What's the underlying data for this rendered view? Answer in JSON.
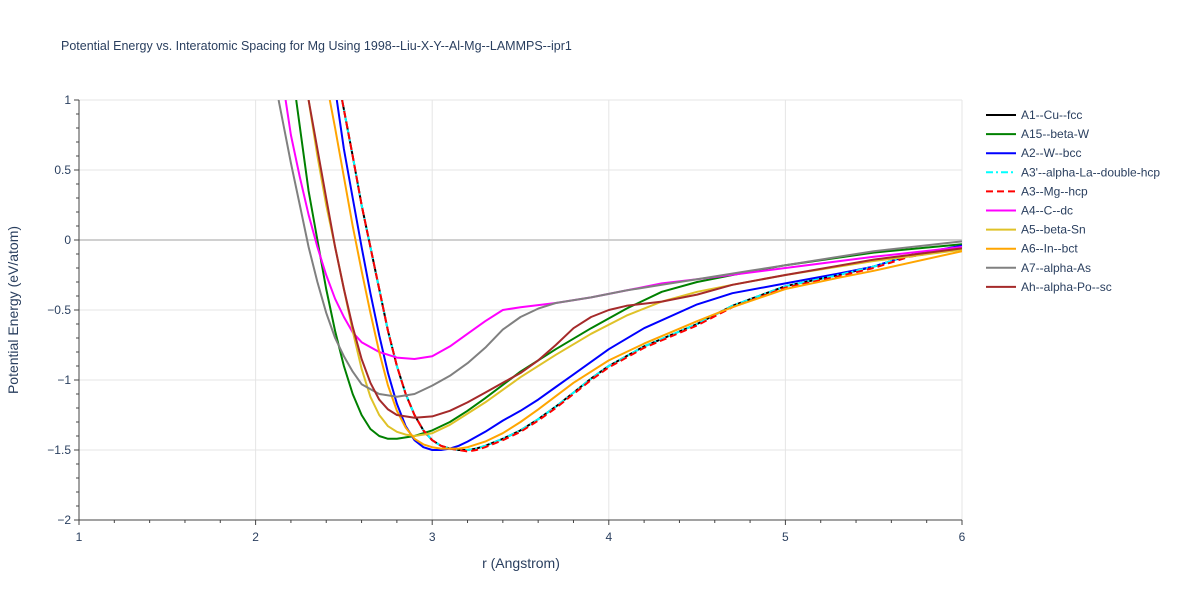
{
  "chart_data": {
    "type": "line",
    "title": "Potential Energy vs. Interatomic Spacing for Mg Using 1998--Liu-X-Y--Al-Mg--LAMMPS--ipr1",
    "xlabel": "r (Angstrom)",
    "ylabel": "Potential Energy (eV/atom)",
    "xlim": [
      1,
      6
    ],
    "ylim": [
      -2,
      1
    ],
    "xticks": [
      1,
      2,
      3,
      4,
      5,
      6
    ],
    "yticks": [
      1,
      0.5,
      0,
      -0.5,
      -1,
      -1.5,
      -2
    ],
    "ytick_labels": [
      "1",
      "0.5",
      "0",
      "−0.5",
      "−1",
      "−1.5",
      "−2"
    ],
    "grid": true,
    "legend_position": "right",
    "series": [
      {
        "name": "A1--Cu--fcc",
        "color": "#000000",
        "dash": "solid",
        "x": [
          2.49,
          2.55,
          2.6,
          2.65,
          2.7,
          2.75,
          2.8,
          2.85,
          2.9,
          2.95,
          3.0,
          3.05,
          3.1,
          3.15,
          3.2,
          3.25,
          3.3,
          3.4,
          3.5,
          3.6,
          3.7,
          3.8,
          3.9,
          4.0,
          4.2,
          4.5,
          4.7,
          5.0,
          5.3,
          5.5,
          5.7,
          6.0
        ],
        "y": [
          1.0,
          0.6,
          0.25,
          -0.05,
          -0.35,
          -0.65,
          -0.9,
          -1.1,
          -1.25,
          -1.36,
          -1.43,
          -1.47,
          -1.49,
          -1.5,
          -1.5,
          -1.49,
          -1.47,
          -1.42,
          -1.36,
          -1.28,
          -1.19,
          -1.09,
          -0.99,
          -0.9,
          -0.76,
          -0.6,
          -0.47,
          -0.33,
          -0.25,
          -0.19,
          -0.11,
          -0.05
        ]
      },
      {
        "name": "A15--beta-W",
        "color": "#008000",
        "dash": "solid",
        "x": [
          2.23,
          2.3,
          2.35,
          2.4,
          2.45,
          2.5,
          2.55,
          2.6,
          2.65,
          2.7,
          2.75,
          2.8,
          2.9,
          3.0,
          3.1,
          3.2,
          3.3,
          3.5,
          3.7,
          3.9,
          4.1,
          4.3,
          4.5,
          4.7,
          5.0,
          5.5,
          6.0
        ],
        "y": [
          1.0,
          0.35,
          0.0,
          -0.35,
          -0.65,
          -0.9,
          -1.1,
          -1.25,
          -1.35,
          -1.4,
          -1.42,
          -1.42,
          -1.4,
          -1.36,
          -1.3,
          -1.22,
          -1.13,
          -0.94,
          -0.78,
          -0.63,
          -0.49,
          -0.37,
          -0.3,
          -0.25,
          -0.18,
          -0.09,
          -0.03
        ]
      },
      {
        "name": "A2--W--bcc",
        "color": "#0000ff",
        "dash": "solid",
        "x": [
          2.46,
          2.5,
          2.55,
          2.6,
          2.65,
          2.7,
          2.75,
          2.8,
          2.85,
          2.9,
          2.95,
          3.0,
          3.05,
          3.1,
          3.15,
          3.2,
          3.3,
          3.4,
          3.5,
          3.6,
          3.7,
          3.8,
          4.0,
          4.2,
          4.5,
          4.7,
          5.0,
          5.3,
          5.5,
          5.7,
          6.0
        ],
        "y": [
          1.0,
          0.65,
          0.3,
          -0.05,
          -0.38,
          -0.68,
          -0.95,
          -1.17,
          -1.33,
          -1.43,
          -1.48,
          -1.5,
          -1.5,
          -1.49,
          -1.47,
          -1.44,
          -1.37,
          -1.29,
          -1.22,
          -1.14,
          -1.05,
          -0.96,
          -0.78,
          -0.63,
          -0.46,
          -0.38,
          -0.31,
          -0.24,
          -0.19,
          -0.11,
          -0.04
        ]
      },
      {
        "name": "A3'--alpha-La--double-hcp",
        "color": "#00ffff",
        "dash": "dashdot",
        "x": [
          2.49,
          2.55,
          2.6,
          2.65,
          2.7,
          2.75,
          2.8,
          2.85,
          2.9,
          2.95,
          3.0,
          3.05,
          3.1,
          3.15,
          3.2,
          3.25,
          3.3,
          3.4,
          3.5,
          3.6,
          3.7,
          3.8,
          3.9,
          4.0,
          4.2,
          4.5,
          4.7,
          5.0,
          5.3,
          5.5,
          5.7,
          6.0
        ],
        "y": [
          1.0,
          0.6,
          0.25,
          -0.05,
          -0.35,
          -0.65,
          -0.9,
          -1.1,
          -1.25,
          -1.36,
          -1.43,
          -1.47,
          -1.49,
          -1.5,
          -1.5,
          -1.49,
          -1.47,
          -1.42,
          -1.36,
          -1.28,
          -1.19,
          -1.09,
          -0.99,
          -0.9,
          -0.76,
          -0.6,
          -0.47,
          -0.33,
          -0.25,
          -0.19,
          -0.11,
          -0.05
        ]
      },
      {
        "name": "A3--Mg--hcp",
        "color": "#ff0000",
        "dash": "dash",
        "x": [
          2.49,
          2.55,
          2.6,
          2.65,
          2.7,
          2.75,
          2.8,
          2.85,
          2.9,
          2.95,
          3.0,
          3.05,
          3.1,
          3.15,
          3.2,
          3.25,
          3.3,
          3.4,
          3.5,
          3.6,
          3.7,
          3.8,
          3.9,
          4.0,
          4.2,
          4.5,
          4.7,
          5.0,
          5.3,
          5.5,
          5.7,
          6.0
        ],
        "y": [
          1.0,
          0.6,
          0.25,
          -0.05,
          -0.35,
          -0.65,
          -0.9,
          -1.1,
          -1.25,
          -1.36,
          -1.43,
          -1.47,
          -1.49,
          -1.5,
          -1.51,
          -1.5,
          -1.48,
          -1.43,
          -1.37,
          -1.29,
          -1.2,
          -1.1,
          -1.0,
          -0.91,
          -0.77,
          -0.61,
          -0.48,
          -0.34,
          -0.26,
          -0.2,
          -0.12,
          -0.06
        ]
      },
      {
        "name": "A4--C--dc",
        "color": "#ff00ff",
        "dash": "solid",
        "x": [
          2.17,
          2.2,
          2.25,
          2.3,
          2.35,
          2.4,
          2.45,
          2.5,
          2.55,
          2.6,
          2.7,
          2.8,
          2.9,
          3.0,
          3.1,
          3.2,
          3.3,
          3.4,
          3.5,
          3.7,
          3.9,
          4.1,
          4.3,
          4.5,
          5.0,
          5.5,
          6.0
        ],
        "y": [
          1.0,
          0.75,
          0.45,
          0.18,
          -0.05,
          -0.25,
          -0.42,
          -0.55,
          -0.66,
          -0.73,
          -0.8,
          -0.84,
          -0.85,
          -0.83,
          -0.76,
          -0.67,
          -0.58,
          -0.5,
          -0.48,
          -0.45,
          -0.41,
          -0.36,
          -0.31,
          -0.28,
          -0.2,
          -0.12,
          -0.05
        ]
      },
      {
        "name": "A5--beta-Sn",
        "color": "#dfc228",
        "dash": "solid",
        "x": [
          2.3,
          2.35,
          2.4,
          2.45,
          2.5,
          2.55,
          2.6,
          2.65,
          2.7,
          2.75,
          2.8,
          2.85,
          2.9,
          3.0,
          3.1,
          3.2,
          3.3,
          3.5,
          3.7,
          3.9,
          4.1,
          4.3,
          4.5,
          4.7,
          5.0,
          5.5,
          6.0
        ],
        "y": [
          1.0,
          0.6,
          0.25,
          -0.05,
          -0.35,
          -0.65,
          -0.92,
          -1.12,
          -1.25,
          -1.33,
          -1.37,
          -1.39,
          -1.4,
          -1.38,
          -1.32,
          -1.24,
          -1.16,
          -0.98,
          -0.82,
          -0.67,
          -0.54,
          -0.44,
          -0.37,
          -0.32,
          -0.25,
          -0.15,
          -0.07
        ]
      },
      {
        "name": "A6--In--bct",
        "color": "#ffa500",
        "dash": "solid",
        "x": [
          2.42,
          2.45,
          2.5,
          2.55,
          2.6,
          2.65,
          2.7,
          2.75,
          2.8,
          2.85,
          2.9,
          2.95,
          3.0,
          3.05,
          3.1,
          3.15,
          3.2,
          3.3,
          3.4,
          3.5,
          3.6,
          3.8,
          4.0,
          4.2,
          4.5,
          4.7,
          5.0,
          5.3,
          5.5,
          6.0
        ],
        "y": [
          1.0,
          0.8,
          0.45,
          0.1,
          -0.22,
          -0.52,
          -0.8,
          -1.04,
          -1.22,
          -1.34,
          -1.42,
          -1.46,
          -1.48,
          -1.49,
          -1.49,
          -1.49,
          -1.48,
          -1.44,
          -1.38,
          -1.3,
          -1.21,
          -1.02,
          -0.86,
          -0.74,
          -0.58,
          -0.48,
          -0.35,
          -0.27,
          -0.22,
          -0.08
        ]
      },
      {
        "name": "A7--alpha-As",
        "color": "#808080",
        "dash": "solid",
        "x": [
          2.13,
          2.2,
          2.25,
          2.3,
          2.35,
          2.4,
          2.45,
          2.5,
          2.55,
          2.6,
          2.7,
          2.8,
          2.9,
          3.0,
          3.1,
          3.2,
          3.3,
          3.4,
          3.5,
          3.6,
          3.7,
          3.9,
          4.1,
          4.3,
          4.5,
          4.8,
          5.0,
          5.5,
          6.0
        ],
        "y": [
          1.0,
          0.55,
          0.25,
          -0.05,
          -0.3,
          -0.52,
          -0.7,
          -0.83,
          -0.94,
          -1.03,
          -1.1,
          -1.12,
          -1.1,
          -1.04,
          -0.97,
          -0.88,
          -0.77,
          -0.64,
          -0.55,
          -0.49,
          -0.45,
          -0.41,
          -0.36,
          -0.32,
          -0.28,
          -0.22,
          -0.18,
          -0.08,
          -0.01
        ]
      },
      {
        "name": "Ah--alpha-Po--sc",
        "color": "#a52a2a",
        "dash": "solid",
        "x": [
          2.3,
          2.35,
          2.4,
          2.45,
          2.5,
          2.55,
          2.6,
          2.65,
          2.7,
          2.75,
          2.8,
          2.9,
          3.0,
          3.1,
          3.2,
          3.3,
          3.4,
          3.5,
          3.6,
          3.7,
          3.8,
          3.9,
          4.0,
          4.1,
          4.3,
          4.5,
          4.7,
          5.0,
          5.5,
          6.0
        ],
        "y": [
          1.0,
          0.65,
          0.3,
          -0.05,
          -0.35,
          -0.62,
          -0.85,
          -1.02,
          -1.14,
          -1.21,
          -1.25,
          -1.27,
          -1.26,
          -1.22,
          -1.16,
          -1.09,
          -1.02,
          -0.95,
          -0.86,
          -0.75,
          -0.63,
          -0.55,
          -0.5,
          -0.47,
          -0.44,
          -0.39,
          -0.32,
          -0.25,
          -0.14,
          -0.06
        ]
      }
    ]
  }
}
